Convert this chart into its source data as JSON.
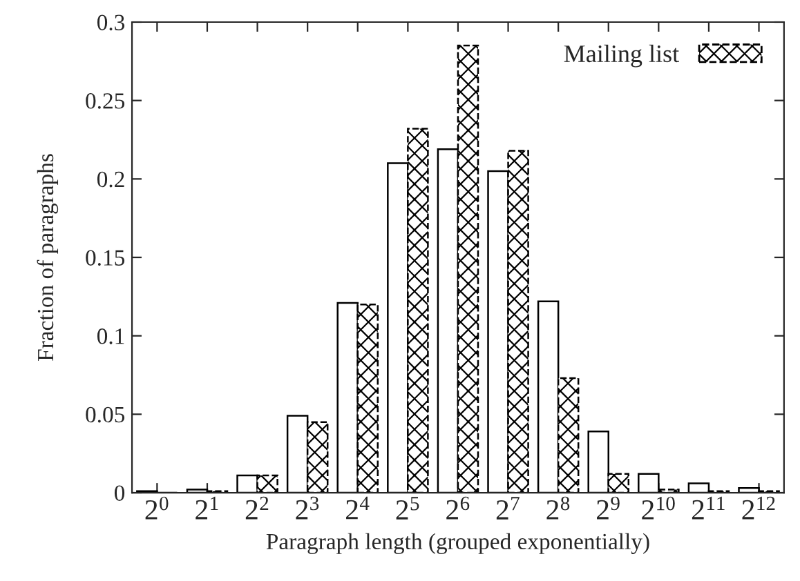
{
  "chart_data": {
    "type": "bar",
    "xlabel": "Paragraph length (grouped exponentially)",
    "ylabel": "Fraction of paragraphs",
    "categories": [
      "2$^{0}$",
      "2$^{1}$",
      "2$^{2}$",
      "2$^{3}$",
      "2$^{4}$",
      "2$^{5}$",
      "2$^{6}$",
      "2$^{7}$",
      "2$^{8}$",
      "2$^{9}$",
      "2$^{10}$",
      "2$^{11}$",
      "2$^{12}$"
    ],
    "series": [
      {
        "color": "#ffffff",
        "values": [
          0.001,
          0.002,
          0.011,
          0.049,
          0.121,
          0.21,
          0.219,
          0.205,
          0.122,
          0.039,
          0.012,
          0.006,
          0.003
        ]
      },
      {
        "name": "Mailing list",
        "color": "#000000",
        "values": [
          0,
          0.001,
          0.011,
          0.045,
          0.12,
          0.232,
          0.285,
          0.218,
          0.073,
          0.012,
          0.002,
          0.001,
          0.001
        ]
      }
    ],
    "ylim": [
      0,
      0.3
    ],
    "yticks": [
      0,
      {
        "value": 0.05,
        "label": "0.05"
      },
      {
        "value": 0.1,
        "label": "0.1"
      },
      {
        "value": 0.15,
        "label": "0.15"
      },
      {
        "value": 0.2,
        "label": "0.2"
      },
      {
        "value": 0.25,
        "label": "0.25"
      },
      {
        "value": 0.3,
        "label": "0.3"
      }
    ],
    "grid": false,
    "legend": "top right"
  }
}
